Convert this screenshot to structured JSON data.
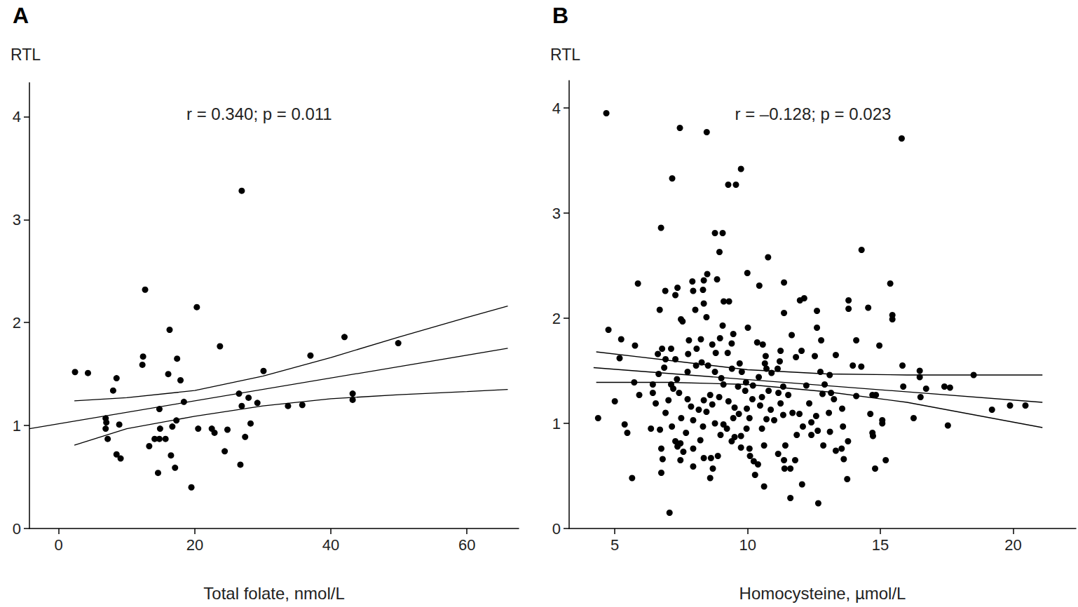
{
  "chart_data": [
    {
      "type": "scatter",
      "title": "A",
      "ylabel": "RTL",
      "xlabel": "Total folate, nmol/L",
      "annotation": "r = 0.340; p = 0.011",
      "xlim": [
        -4.3,
        67.6
      ],
      "xticks": [
        0,
        20,
        40,
        60
      ],
      "ylim": [
        0,
        4.33
      ],
      "yticks": [
        0,
        1,
        2,
        3,
        4
      ],
      "grid": false,
      "series": [
        {
          "type": "scatter",
          "color": "#000000",
          "marker": "circle",
          "x": [
            2.4,
            4.3,
            8.5,
            8.0,
            6.9,
            7.0,
            6.9,
            7.2,
            8.9,
            8.5,
            9.1,
            12.7,
            12.4,
            12.3,
            16.3,
            16.1,
            17.4,
            17.9,
            14.8,
            18.4,
            17.3,
            16.7,
            13.3,
            14.1,
            14.8,
            15.7,
            14.9,
            16.5,
            17.1,
            14.6,
            19.5,
            20.3,
            20.5,
            23.7,
            22.5,
            22.9,
            24.8,
            24.4,
            26.9,
            26.5,
            26.9,
            27.9,
            29.2,
            28.2,
            27.4,
            26.7,
            30.1,
            33.7,
            35.8,
            37.0,
            42.0,
            43.2,
            43.2,
            49.9
          ],
          "values": [
            1.52,
            1.51,
            1.46,
            1.34,
            1.07,
            1.03,
            0.97,
            0.87,
            1.01,
            0.72,
            0.68,
            2.32,
            1.67,
            1.59,
            1.93,
            1.5,
            1.65,
            1.44,
            1.16,
            1.23,
            1.05,
            0.99,
            0.8,
            0.87,
            0.87,
            0.87,
            0.97,
            0.71,
            0.59,
            0.54,
            0.4,
            2.15,
            0.97,
            1.77,
            0.97,
            0.93,
            0.96,
            0.75,
            3.28,
            1.31,
            1.19,
            1.27,
            1.22,
            1.02,
            0.89,
            0.62,
            1.53,
            1.19,
            1.2,
            1.68,
            1.86,
            1.31,
            1.25,
            1.8
          ]
        },
        {
          "type": "line",
          "color": "#000000",
          "line_style": "solid",
          "x": [
            -4.3,
            66
          ],
          "values": [
            0.97,
            1.75
          ]
        },
        {
          "type": "line",
          "color": "#000000",
          "line_style": "solid",
          "x": [
            2.3,
            10,
            20,
            30,
            40,
            50,
            60,
            66
          ],
          "values": [
            1.24,
            1.27,
            1.34,
            1.48,
            1.66,
            1.86,
            2.05,
            2.16
          ]
        },
        {
          "type": "line",
          "color": "#000000",
          "line_style": "solid",
          "x": [
            2.3,
            10,
            20,
            30,
            40,
            50,
            60,
            66
          ],
          "values": [
            0.81,
            0.97,
            1.09,
            1.19,
            1.26,
            1.3,
            1.33,
            1.35
          ]
        }
      ]
    },
    {
      "type": "scatter",
      "title": "B",
      "ylabel": "RTL",
      "xlabel": "Homocysteine, µmol/L",
      "annotation": "r = –0.128; p = 0.023",
      "xlim": [
        3.28,
        22.36
      ],
      "xticks": [
        5,
        10,
        15,
        20
      ],
      "ylim": [
        0,
        4.26
      ],
      "yticks": [
        0,
        1,
        2,
        3,
        4
      ],
      "grid": false,
      "series": [
        {
          "type": "scatter",
          "color": "#000000",
          "marker": "circle",
          "x": [
            4.68,
            4.37,
            4.76,
            5.0,
            5.24,
            5.18,
            5.37,
            5.47,
            5.65,
            5.76,
            5.87,
            5.73,
            5.92,
            7.45,
            7.16,
            8.46,
            6.74,
            9.75,
            9.27,
            9.56,
            8.77,
            9.06,
            8.94,
            10.77,
            15.8,
            14.29,
            15.37,
            15.45,
            15.45,
            7.06,
            12.66,
            11.61,
            12.05,
            10.62,
            18.51,
            17.62,
            19.2,
            19.88,
            20.46,
            17.54,
            16.25,
            15.86,
            15.83,
            16.48,
            16.48,
            16.72,
            16.51,
            17.41,
            14.96,
            14.54,
            13.8,
            13.8,
            14.09,
            13.96,
            14.28,
            14.09,
            14.7,
            14.83,
            14.62,
            15.07,
            15.07,
            14.7,
            14.72,
            14.8,
            15.2,
            13.75,
            13.32,
            13.54,
            12.85,
            13.1,
            13.06,
            12.82,
            13.14,
            12.9,
            12.61,
            12.77,
            12.61,
            13.32,
            11.97,
            12.13,
            11.37,
            11.37,
            11.66,
            10.44,
            10.36,
            10.57,
            10.01,
            9.99,
            9.06,
            9.1,
            9.3,
            8.85,
            8.48,
            8.35,
            8.32,
            8.35,
            8.45,
            8.03,
            7.95,
            7.92,
            7.28,
            7.36,
            6.9,
            6.69,
            7.49,
            7.55,
            7.12,
            6.78,
            6.62,
            6.91,
            6.43,
            6.43,
            6.54,
            6.36,
            6.7,
            6.75,
            6.8,
            6.75,
            7.47,
            7.36,
            7.68,
            7.47,
            7.95,
            8.22,
            8.59,
            8.69,
            8.62,
            8.88,
            8.77,
            9.09,
            9.22,
            8.98,
            9.51,
            9.4,
            9.75,
            10.07,
            10.09,
            10.23,
            10.39,
            10.28,
            9.75,
            9.96,
            10.54,
            10.62,
            11.15,
            11.37,
            11.39,
            11.61,
            11.79,
            11.42,
            11.85,
            12.08,
            12.4,
            12.4,
            12.64,
            12.58,
            12.32,
            11.69,
            11.34,
            11.0,
            10.87,
            10.47,
            10.18,
            9.97,
            9.67,
            9.46,
            9.51,
            9.28,
            8.93,
            8.67,
            8.35,
            8.16,
            7.87,
            7.74,
            7.42,
            7.2,
            7.12,
            7.34,
            7.74,
            8.06,
            8.27,
            8.51,
            8.77,
            9.01,
            9.41,
            9.7,
            9.78,
            9.94,
            10.2,
            10.42,
            10.71,
            10.9,
            11.13,
            11.21,
            11.24,
            10.68,
            10.65,
            11.34,
            11.53,
            11.24,
            11.16,
            10.79,
            9.46,
            9.4,
            9.25,
            8.96,
            8.67,
            8.8,
            8.24,
            8.08,
            7.79,
            7.76,
            7.28,
            6.86,
            6.65,
            7.02,
            6.91,
            7.15,
            7.28,
            7.5,
            7.95,
            8.32,
            8.45,
            8.59,
            9.09,
            9.64,
            9.91,
            10.54,
            10.07,
            10.71,
            11.95,
            12.21,
            11.82,
            12.03,
            12.53,
            12.74,
            13.09,
            13.25,
            13.59,
            13.78,
            13.62,
            13.56,
            8.35,
            7.95,
            7.58
          ],
          "values": [
            3.95,
            1.05,
            1.89,
            1.21,
            1.8,
            1.62,
            0.99,
            0.91,
            0.48,
            1.74,
            2.33,
            1.39,
            1.27,
            3.81,
            3.33,
            3.77,
            2.86,
            3.42,
            3.27,
            3.27,
            2.81,
            2.81,
            2.63,
            2.58,
            3.71,
            2.65,
            2.33,
            2.03,
            1.99,
            0.15,
            0.24,
            0.29,
            0.42,
            0.4,
            1.46,
            1.34,
            1.13,
            1.17,
            1.17,
            0.98,
            1.05,
            1.35,
            1.55,
            1.5,
            1.44,
            1.33,
            1.25,
            1.35,
            1.74,
            2.1,
            2.17,
            2.09,
            1.79,
            1.55,
            1.54,
            1.26,
            1.27,
            1.27,
            1.09,
            1.03,
            1.0,
            0.91,
            0.88,
            0.57,
            0.65,
            0.47,
            0.74,
            0.76,
            0.79,
            0.92,
            1.1,
            1.28,
            1.29,
            1.37,
            1.91,
            1.79,
            2.07,
            1.65,
            2.17,
            2.19,
            2.34,
            2.05,
            1.84,
            2.31,
            1.77,
            1.75,
            1.91,
            2.43,
            1.93,
            2.16,
            2.16,
            2.37,
            2.42,
            2.36,
            2.27,
            2.14,
            2.01,
            2.08,
            2.26,
            2.35,
            2.22,
            2.29,
            2.26,
            2.08,
            1.99,
            1.97,
            1.71,
            1.71,
            1.66,
            1.61,
            1.37,
            1.29,
            1.19,
            0.95,
            0.94,
            0.76,
            0.66,
            0.53,
            0.65,
            0.78,
            0.91,
            0.81,
            0.76,
            0.84,
            0.48,
            0.57,
            0.67,
            0.69,
            1.0,
            0.99,
            0.95,
            0.89,
            0.87,
            0.83,
            0.77,
            0.76,
            0.69,
            0.64,
            0.61,
            0.51,
            0.88,
            0.95,
            0.95,
            0.79,
            0.71,
            0.65,
            0.57,
            0.57,
            0.65,
            0.79,
            0.89,
            0.97,
            1.01,
            0.89,
            0.93,
            1.07,
            1.19,
            1.1,
            1.08,
            1.03,
            1.13,
            1.17,
            1.23,
            1.14,
            1.09,
            1.05,
            1.15,
            1.21,
            1.25,
            1.18,
            1.22,
            1.13,
            1.16,
            1.23,
            1.29,
            1.33,
            1.37,
            1.42,
            1.49,
            1.55,
            1.58,
            1.55,
            1.49,
            1.43,
            1.52,
            1.57,
            1.49,
            1.39,
            1.36,
            1.44,
            1.52,
            1.48,
            1.52,
            1.59,
            1.69,
            1.64,
            1.57,
            1.35,
            1.27,
            1.19,
            1.29,
            1.31,
            1.85,
            1.76,
            1.67,
            1.81,
            1.75,
            1.67,
            1.8,
            1.71,
            1.79,
            1.66,
            1.61,
            1.53,
            1.47,
            1.22,
            1.1,
            0.97,
            0.83,
            1.05,
            1.03,
            0.97,
            1.11,
            1.27,
            1.37,
            1.35,
            1.31,
            1.25,
            1.05,
            1.04,
            1.09,
            1.36,
            1.63,
            1.69,
            1.64,
            1.49,
            1.46,
            1.23,
            0.97,
            0.83,
            0.66,
            1.14,
            0.67,
            0.59,
            0.73
          ]
        },
        {
          "type": "line",
          "color": "#000000",
          "line_style": "solid",
          "x": [
            4.2,
            21.1
          ],
          "values": [
            1.53,
            1.2
          ]
        },
        {
          "type": "line",
          "color": "#000000",
          "line_style": "solid",
          "x": [
            4.3,
            7,
            10,
            13,
            16,
            21.1
          ],
          "values": [
            1.68,
            1.6,
            1.51,
            1.47,
            1.46,
            1.46
          ]
        },
        {
          "type": "line",
          "color": "#000000",
          "line_style": "solid",
          "x": [
            4.3,
            7,
            10,
            13,
            16,
            21.1
          ],
          "values": [
            1.39,
            1.39,
            1.37,
            1.3,
            1.2,
            0.96
          ]
        }
      ]
    }
  ]
}
